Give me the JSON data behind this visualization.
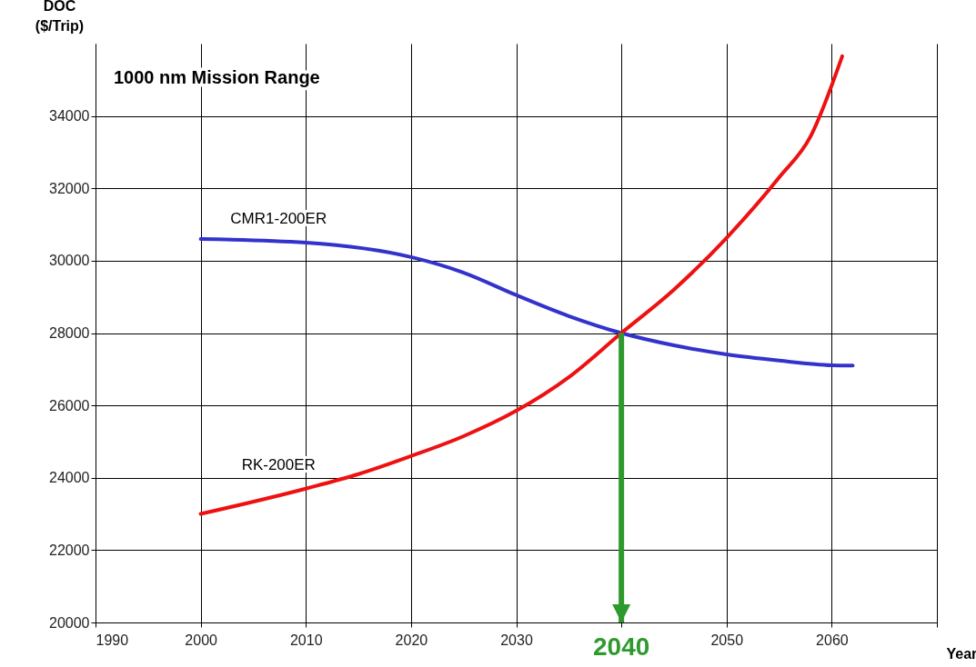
{
  "chart_data": {
    "type": "line",
    "title": "1000 nm Mission Range",
    "xlabel": "Year",
    "ylabel": "DOC ($/Trip)",
    "xlim": [
      1990,
      2070
    ],
    "xticks": [
      1990,
      2000,
      2010,
      2020,
      2030,
      {
        "value": 2040,
        "label": null
      },
      2050,
      2060,
      {
        "value": 2070,
        "label": null
      }
    ],
    "ylim": [
      20000,
      36000
    ],
    "yticks": [
      20000,
      22000,
      24000,
      26000,
      28000,
      30000,
      32000,
      34000
    ],
    "grid": true,
    "marker": "none",
    "line_style": "solid",
    "series": [
      {
        "name": "CMR1-200ER",
        "color": "#3333cc",
        "x": [
          2000,
          2010,
          2020,
          2025,
          2030,
          2035,
          2040,
          2045,
          2050,
          2055,
          2060,
          2062
        ],
        "values": [
          30600,
          30500,
          30100,
          29670,
          29050,
          28470,
          28000,
          27660,
          27410,
          27240,
          27110,
          27100
        ]
      },
      {
        "name": "RK-200ER",
        "color": "#ee1111",
        "x": [
          2000,
          2010,
          2015,
          2020,
          2025,
          2030,
          2035,
          2040,
          2045,
          2050,
          2055,
          2058,
          2061
        ],
        "values": [
          23000,
          23700,
          24100,
          24600,
          25150,
          25850,
          26780,
          28000,
          29200,
          30630,
          32300,
          33440,
          35650
        ]
      }
    ],
    "annotations": [
      {
        "text": "2040",
        "x": 2040,
        "y": 28000
      }
    ]
  }
}
